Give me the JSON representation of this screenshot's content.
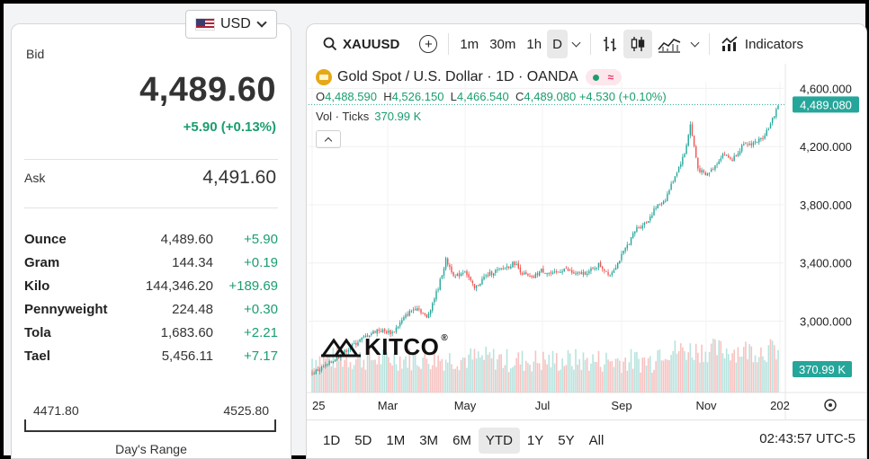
{
  "currency_selector": {
    "label": "USD",
    "icon": "us-flag-icon"
  },
  "quote": {
    "bid_label": "Bid",
    "bid": "4,489.60",
    "change": "+5.90 (+0.13%)",
    "ask_label": "Ask",
    "ask": "4,491.60"
  },
  "units": [
    {
      "name": "Ounce",
      "price": "4,489.60",
      "change": "+5.90"
    },
    {
      "name": "Gram",
      "price": "144.34",
      "change": "+0.19"
    },
    {
      "name": "Kilo",
      "price": "144,346.20",
      "change": "+189.69"
    },
    {
      "name": "Pennyweight",
      "price": "224.48",
      "change": "+0.30"
    },
    {
      "name": "Tola",
      "price": "1,683.60",
      "change": "+2.21"
    },
    {
      "name": "Tael",
      "price": "5,456.11",
      "change": "+7.17"
    }
  ],
  "days_range": {
    "low": "4471.80",
    "high": "4525.80",
    "label": "Day's Range"
  },
  "chart": {
    "toolbar": {
      "symbol": "XAUUSD",
      "intervals": [
        "1m",
        "30m",
        "1h",
        "D"
      ],
      "active_interval": "D",
      "indicators_label": "Indicators"
    },
    "title": "Gold Spot / U.S. Dollar · 1D · OANDA",
    "ohlc": {
      "o_label": "O",
      "o": "4,488.590",
      "h_label": "H",
      "h": "4,526.150",
      "l_label": "L",
      "l": "4,466.540",
      "c_label": "C",
      "c": "4,489.080",
      "change": "+4.530 (+0.10%)"
    },
    "volume_label": "Vol · Ticks",
    "volume_value": "370.99 K",
    "price_ticks": [
      "4,600.000",
      "4,200.000",
      "3,800.000",
      "3,400.000",
      "3,000.000"
    ],
    "last_price_tag": "4,489.080",
    "volume_tag": "370.99 K",
    "x_ticks": [
      "25",
      "Mar",
      "May",
      "Jul",
      "Sep",
      "Nov",
      "202"
    ],
    "timeframes": [
      "1D",
      "5D",
      "1M",
      "3M",
      "6M",
      "YTD",
      "1Y",
      "5Y",
      "All"
    ],
    "active_timeframe": "YTD",
    "clock": "02:43:57 UTC-5",
    "watermark": "KITCO",
    "colors": {
      "up": "#26a69a",
      "down": "#ef5350",
      "accent": "#1a9e6e"
    }
  },
  "chart_data": {
    "type": "candlestick",
    "title": "Gold Spot / U.S. Dollar · 1D · OANDA",
    "x_ticks": [
      "25",
      "Mar",
      "May",
      "Jul",
      "Sep",
      "Nov",
      "202"
    ],
    "y_ticks": [
      4600,
      4200,
      3800,
      3400,
      3000
    ],
    "ylim": [
      2620,
      4720
    ],
    "close_path": [
      [
        0,
        2640
      ],
      [
        8,
        2700
      ],
      [
        16,
        2780
      ],
      [
        25,
        2870
      ],
      [
        34,
        2940
      ],
      [
        42,
        2920
      ],
      [
        50,
        3050
      ],
      [
        55,
        3100
      ],
      [
        60,
        3020
      ],
      [
        66,
        3230
      ],
      [
        70,
        3420
      ],
      [
        75,
        3300
      ],
      [
        80,
        3350
      ],
      [
        85,
        3220
      ],
      [
        90,
        3300
      ],
      [
        95,
        3340
      ],
      [
        100,
        3360
      ],
      [
        106,
        3400
      ],
      [
        110,
        3330
      ],
      [
        115,
        3290
      ],
      [
        120,
        3350
      ],
      [
        126,
        3320
      ],
      [
        132,
        3360
      ],
      [
        138,
        3320
      ],
      [
        145,
        3340
      ],
      [
        150,
        3390
      ],
      [
        156,
        3320
      ],
      [
        160,
        3400
      ],
      [
        165,
        3520
      ],
      [
        170,
        3640
      ],
      [
        175,
        3680
      ],
      [
        180,
        3780
      ],
      [
        185,
        3840
      ],
      [
        190,
        4000
      ],
      [
        195,
        4150
      ],
      [
        198,
        4350
      ],
      [
        202,
        4050
      ],
      [
        206,
        4000
      ],
      [
        210,
        4050
      ],
      [
        215,
        4150
      ],
      [
        220,
        4110
      ],
      [
        225,
        4200
      ],
      [
        230,
        4220
      ],
      [
        235,
        4250
      ],
      [
        240,
        4350
      ],
      [
        244,
        4489
      ]
    ],
    "last": 4489.08
  }
}
